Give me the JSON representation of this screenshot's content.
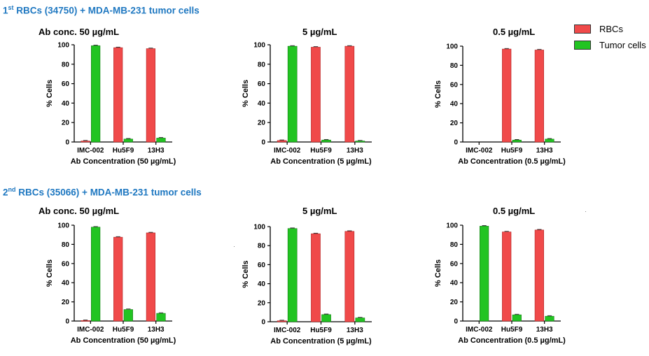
{
  "sections": [
    {
      "prefix": "1",
      "sup": "st",
      "title": " RBCs (34750) + MDA-MB-231 tumor cells"
    },
    {
      "prefix": "2",
      "sup": "nd",
      "title": " RBCs (35066) + MDA-MB-231 tumor cells"
    }
  ],
  "legend": [
    {
      "label": "RBCs",
      "color": "#f04a4a"
    },
    {
      "label": "Tumor cells",
      "color": "#22c422"
    }
  ],
  "chart_data": [
    {
      "type": "bar",
      "title": "Ab conc.  50 µg/mL",
      "xlabel": "Ab Concentration (50 µg/mL)",
      "ylabel": "% Cells",
      "categories": [
        "IMC-002",
        "Hu5F9",
        "13H3"
      ],
      "ylim": [
        0,
        100
      ],
      "yticks": [
        0,
        20,
        40,
        60,
        80,
        100
      ],
      "series": [
        {
          "name": "RBCs",
          "values": [
            1.0,
            97.0,
            96.0
          ]
        },
        {
          "name": "Tumor cells",
          "values": [
            99.0,
            3.0,
            4.0
          ]
        }
      ]
    },
    {
      "type": "bar",
      "title": "5 µg/mL",
      "xlabel": "Ab Concentration (5 µg/mL)",
      "ylabel": "% Cells",
      "categories": [
        "IMC-002",
        "Hu5F9",
        "13H3"
      ],
      "ylim": [
        0,
        100
      ],
      "yticks": [
        0,
        20,
        40,
        60,
        80,
        100
      ],
      "series": [
        {
          "name": "RBCs",
          "values": [
            1.5,
            97.5,
            98.5
          ]
        },
        {
          "name": "Tumor cells",
          "values": [
            98.5,
            2.0,
            1.0
          ]
        }
      ]
    },
    {
      "type": "bar",
      "title": "0.5 µg/mL",
      "xlabel": "Ab Concentration (0.5 µg/mL)",
      "ylabel": "% Cells",
      "categories": [
        "IMC-002",
        "Hu5F9",
        "13H3"
      ],
      "ylim": [
        0,
        100
      ],
      "yticks": [
        0,
        20,
        40,
        60,
        80,
        100
      ],
      "series": [
        {
          "name": "RBCs",
          "values": [
            0.0,
            97.0,
            96.0
          ]
        },
        {
          "name": "Tumor cells",
          "values": [
            0.0,
            2.0,
            3.0
          ]
        }
      ]
    },
    {
      "type": "bar",
      "title": "Ab conc.  50 µg/mL",
      "xlabel": "Ab Concentration (50 µg/mL)",
      "ylabel": "% Cells",
      "categories": [
        "IMC-002",
        "Hu5F9",
        "13H3"
      ],
      "ylim": [
        0,
        100
      ],
      "yticks": [
        0,
        20,
        40,
        60,
        80,
        100
      ],
      "series": [
        {
          "name": "RBCs",
          "values": [
            0.5,
            87.5,
            92.0
          ]
        },
        {
          "name": "Tumor cells",
          "values": [
            98.0,
            12.0,
            8.0
          ]
        }
      ]
    },
    {
      "type": "bar",
      "title": "5 µg/mL",
      "xlabel": "Ab Concentration (5 µg/mL)",
      "ylabel": "% Cells",
      "categories": [
        "IMC-002",
        "Hu5F9",
        "13H3"
      ],
      "ylim": [
        0,
        100
      ],
      "yticks": [
        0,
        20,
        40,
        60,
        80,
        100
      ],
      "series": [
        {
          "name": "RBCs",
          "values": [
            1.0,
            92.5,
            95.0
          ]
        },
        {
          "name": "Tumor cells",
          "values": [
            98.0,
            7.5,
            4.0
          ]
        }
      ]
    },
    {
      "type": "bar",
      "title": "0.5 µg/mL",
      "xlabel": "Ab Concentration (0.5 µg/mL)",
      "ylabel": "% Cells",
      "categories": [
        "IMC-002",
        "Hu5F9",
        "13H3"
      ],
      "ylim": [
        0,
        100
      ],
      "yticks": [
        0,
        20,
        40,
        60,
        80,
        100
      ],
      "series": [
        {
          "name": "RBCs",
          "values": [
            0.0,
            93.0,
            95.0
          ]
        },
        {
          "name": "Tumor cells",
          "values": [
            99.0,
            6.5,
            5.0
          ]
        }
      ]
    }
  ]
}
